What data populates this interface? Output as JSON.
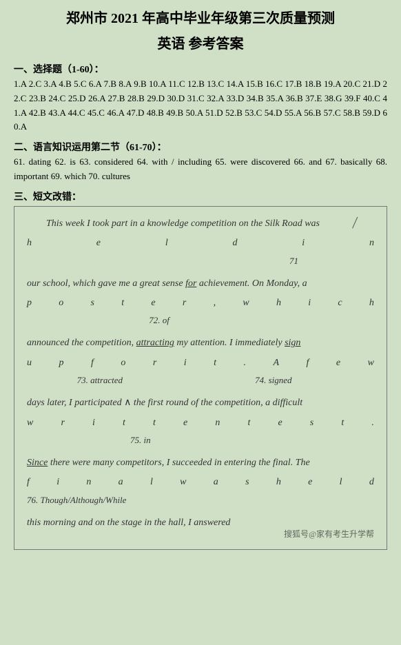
{
  "title_line1": "郑州市 2021 年高中毕业年级第三次质量预测",
  "title_line2": "英语 参考答案",
  "section1_heading": "一、选择题（1-60）：",
  "mc_answers": "1.A 2.C 3.A 4.B 5.C 6.A 7.B 8.A 9.B 10.A 11.C 12.B 13.C 14.A 15.B 16.C 17.B 18.B 19.A 20.C 21.D 22.C 23.B 24.C 25.D 26.A 27.B 28.B 29.D 30.D 31.C 32.A 33.D 34.B 35.A 36.B 37.E 38.G 39.F 40.C 41.A 42.B 43.A 44.C 45.C 46.A 47.D 48.B 49.B 50.A 51.D 52.B 53.C 54.D 55.A 56.B 57.C 58.B 59.D 60.A",
  "section2_heading": "二、语言知识运用第二节（61-70）：",
  "fill_answers": "61. dating 62. is 63. considered 64. with / including 65. were discovered 66. and 67. basically 68. important 69. which 70. cultures",
  "section3_heading": "三、短文改错：",
  "essay": {
    "line1": "This week I took part in a knowledge competition on the Silk Road was",
    "line1_chars": [
      "h",
      "e",
      "l",
      "d",
      "i",
      "n"
    ],
    "note71": "71",
    "line2a": "our school, which gave me a great sense ",
    "line2_for": "for",
    "line2b": " achievement. On Monday, a",
    "line2_chars": [
      "p",
      "o",
      "s",
      "t",
      "e",
      "r",
      ",",
      "w",
      "h",
      "i",
      "c",
      "h"
    ],
    "note72": "72. of",
    "line3a": "announced the competition, ",
    "line3_attracting": "attracting",
    "line3b": " my attention. I immediately ",
    "line3_sign": "sign",
    "line3_chars": [
      "u",
      "p",
      "f",
      "o",
      "r",
      "i",
      "t",
      ".",
      "A",
      "f",
      "e",
      "w"
    ],
    "note73": "73. attracted",
    "note74": "74. signed",
    "line4a": "days later, I participated ",
    "line4_caret": "∧",
    "line4b": " the first round of the competition, a difficult",
    "line4_chars": [
      "w",
      "r",
      "i",
      "t",
      "t",
      "e",
      "n",
      "t",
      "e",
      "s",
      "t",
      "."
    ],
    "note75": "75. in",
    "line5_since": "Since",
    "line5b": " there were many competitors, I succeeded in entering the final. The",
    "line5_chars": [
      "f",
      "i",
      "n",
      "a",
      "l",
      "w",
      "a",
      "s",
      "h",
      "e",
      "l",
      "d"
    ],
    "note76": "76. Though/Although/While",
    "line6": "this morning and on the stage in the hall, I answered",
    "watermark": "搜狐号@家有考生升学帮"
  },
  "colors": {
    "background": "#d0e0c7",
    "text": "#000000",
    "border": "#777777"
  }
}
